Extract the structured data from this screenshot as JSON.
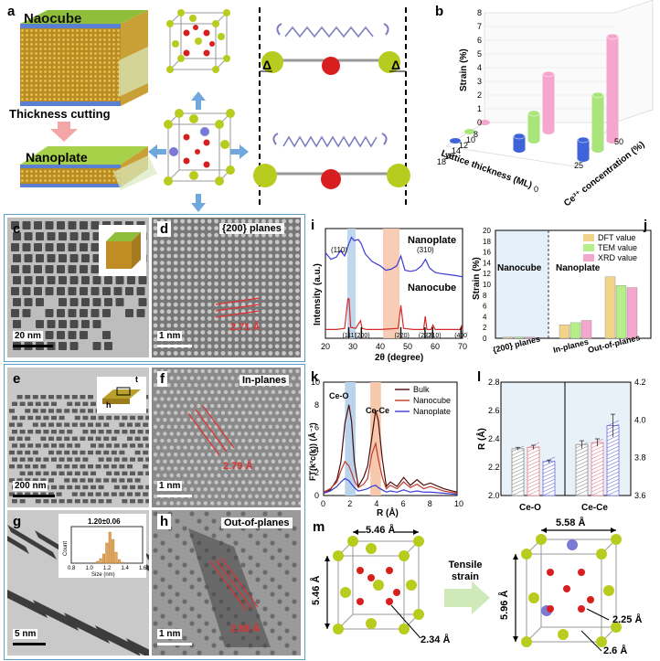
{
  "panel_a": {
    "letter": "a",
    "nanocube_label": "Naocube",
    "cutting_label": "Thickness cutting",
    "nanoplate_label": "Nanoplate",
    "delta_symbol": "Δ"
  },
  "panel_b": {
    "letter": "b",
    "z_label": "Strain (%)",
    "x_label": "Lattice thickness (ML)",
    "y_label": "Ce³⁺ concentration (%)",
    "x_ticks": [
      "8",
      "10",
      "12",
      "14",
      "16",
      "18"
    ],
    "y_ticks": [
      "0",
      "25",
      "50"
    ],
    "z_ticks": [
      "0",
      "1",
      "2",
      "3",
      "4",
      "5",
      "6",
      "7",
      "8"
    ],
    "colors": {
      "pink": "#f4a6cc",
      "green": "#a9e57a",
      "blue": "#3f63d9"
    }
  },
  "panel_c": {
    "letter": "c",
    "scale": "20 nm"
  },
  "panel_d": {
    "letter": "d",
    "title": "{200} planes",
    "spacing": "2.71 Å",
    "scale": "1 nm"
  },
  "panel_e": {
    "letter": "e",
    "scale": "200 nm",
    "inset_t": "t",
    "inset_h": "h"
  },
  "panel_f": {
    "letter": "f",
    "title": "In-planes",
    "spacing": "2.79 Å",
    "scale": "1 nm"
  },
  "panel_g": {
    "letter": "g",
    "scale": "5 nm",
    "inset_value": "1.20±0.06",
    "inset_ylabel": "Count",
    "inset_xlabel": "Size (nm)",
    "inset_xticks": [
      "0.8",
      "1.0",
      "1.2",
      "1.4",
      "1.6"
    ]
  },
  "panel_h": {
    "letter": "h",
    "title": "Out-of-planes",
    "spacing": "2.88 Å",
    "scale": "1 nm"
  },
  "panel_i": {
    "letter": "i",
    "ylabel": "Intensity (a.u.)",
    "xlabel": "2θ (degree)",
    "xticks": [
      "20",
      "30",
      "40",
      "50",
      "60",
      "70"
    ],
    "series_top": "Nanoplate",
    "series_bottom": "Nanocube",
    "peak_labels": [
      "(110)",
      "(310)"
    ],
    "reflections": [
      "(111)",
      "(200)",
      "(220)",
      "(222)",
      "(310)",
      "(400)"
    ]
  },
  "panel_j": {
    "letter": "j",
    "ylabel": "Strain (%)",
    "yticks": [
      "0",
      "2",
      "4",
      "6",
      "8",
      "10",
      "12",
      "14",
      "16",
      "18",
      "20"
    ],
    "region_left": "Nanocube",
    "region_right": "Nanoplate",
    "legend": [
      "DFT value",
      "TEM value",
      "XRD value"
    ],
    "categories": [
      "{200} planes",
      "In-planes",
      "Out-of-planes"
    ]
  },
  "panel_k": {
    "letter": "k",
    "ylabel": "FT(k³c(k)) (Å⁻³)",
    "xlabel": "R (Å)",
    "xticks": [
      "0",
      "2",
      "4",
      "6",
      "8",
      "10"
    ],
    "yticks": [
      "0",
      "2",
      "4",
      "6",
      "8",
      "10"
    ],
    "legend": [
      "Bulk",
      "Nanocube",
      "Nanoplate"
    ],
    "annotations": [
      "Ce-O",
      "Ce-Ce"
    ]
  },
  "panel_l": {
    "letter": "l",
    "ylabel": "R (Å)",
    "yticks_left": [
      "2.0",
      "2.2",
      "2.4",
      "2.6",
      "2.8"
    ],
    "yticks_right": [
      "3.6",
      "3.8",
      "4.0",
      "4.2"
    ],
    "categories": [
      "Ce-O",
      "Ce-Ce"
    ]
  },
  "panel_m": {
    "letter": "m",
    "left_top": "5.46 Å",
    "left_side": "5.46 Å",
    "left_bond": "2.34 Å",
    "arrow_label": "Tensile strain",
    "right_top": "5.58 Å",
    "right_side": "5.96 Å",
    "right_bond1": "2.25 Å",
    "right_bond2": "2.6 Å"
  },
  "chart_data": [
    {
      "type": "bar",
      "panel": "b",
      "title": "",
      "xlabel": "Lattice thickness (ML)",
      "ylabel": "Ce³⁺ concentration (%)",
      "zlabel": "Strain (%)",
      "zlim": [
        0,
        8
      ],
      "series": [
        {
          "name": "",
          "color": "#f4a6cc",
          "points": [
            {
              "thickness": 8,
              "ce3": 0,
              "strain": 0.1
            },
            {
              "thickness": 8,
              "ce3": 25,
              "strain": 4.2
            },
            {
              "thickness": 8,
              "ce3": 50,
              "strain": 7.6
            }
          ]
        },
        {
          "name": "",
          "color": "#a9e57a",
          "points": [
            {
              "thickness": 12,
              "ce3": 0,
              "strain": 0.1
            },
            {
              "thickness": 12,
              "ce3": 25,
              "strain": 2.0
            },
            {
              "thickness": 12,
              "ce3": 50,
              "strain": 4.0
            }
          ]
        },
        {
          "name": "",
          "color": "#3f63d9",
          "points": [
            {
              "thickness": 16,
              "ce3": 0,
              "strain": 0.1
            },
            {
              "thickness": 16,
              "ce3": 25,
              "strain": 1.0
            },
            {
              "thickness": 16,
              "ce3": 50,
              "strain": 1.4
            }
          ]
        }
      ]
    },
    {
      "type": "line",
      "panel": "i",
      "xlabel": "2θ (degree)",
      "ylabel": "Intensity (a.u.)",
      "xlim": [
        20,
        70
      ],
      "series": [
        {
          "name": "Nanoplate",
          "color": "#3a3ad6",
          "x": [
            20,
            22,
            24,
            25.5,
            27,
            28.5,
            29.5,
            30.5,
            32,
            33.1,
            34.5,
            37,
            40,
            42,
            44,
            46,
            47.5,
            49,
            51,
            53,
            55,
            56.5,
            58,
            60,
            62,
            65,
            68,
            70
          ],
          "y": [
            0.78,
            0.72,
            0.74,
            0.8,
            0.75,
            0.86,
            0.92,
            0.89,
            0.9,
            0.86,
            0.77,
            0.7,
            0.66,
            0.62,
            0.63,
            0.66,
            0.75,
            0.62,
            0.61,
            0.62,
            0.66,
            0.72,
            0.64,
            0.6,
            0.59,
            0.58,
            0.57,
            0.56
          ]
        },
        {
          "name": "Nanocube",
          "color": "#d62828",
          "x": [
            20,
            24,
            27,
            28.2,
            28.6,
            29.2,
            31,
            32.8,
            33.4,
            35,
            40,
            46.5,
            47.5,
            48.5,
            52,
            55.8,
            56.4,
            57,
            58.5,
            59.2,
            60,
            66,
            69.2,
            69.6,
            70
          ],
          "y": [
            0.08,
            0.08,
            0.09,
            0.36,
            0.36,
            0.1,
            0.09,
            0.16,
            0.09,
            0.08,
            0.08,
            0.09,
            0.3,
            0.09,
            0.08,
            0.08,
            0.2,
            0.08,
            0.08,
            0.12,
            0.08,
            0.08,
            0.08,
            0.11,
            0.08
          ]
        }
      ]
    },
    {
      "type": "bar",
      "panel": "j",
      "ylabel": "Strain (%)",
      "ylim": [
        0,
        20
      ],
      "categories": [
        "{200} planes",
        "In-planes",
        "Out-of-planes"
      ],
      "series": [
        {
          "name": "DFT value",
          "color": "#f2d38a",
          "values": [
            0.2,
            2.5,
            11.4
          ]
        },
        {
          "name": "TEM value",
          "color": "#b6ef8a",
          "values": [
            0.2,
            2.9,
            9.8
          ]
        },
        {
          "name": "XRD value",
          "color": "#f4a6cc",
          "values": [
            0.2,
            3.3,
            9.4
          ]
        }
      ]
    },
    {
      "type": "line",
      "panel": "k",
      "xlabel": "R (Å)",
      "ylabel": "FT(k³c(k)) (Å⁻³)",
      "xlim": [
        0,
        10
      ],
      "ylim": [
        0,
        10
      ],
      "series": [
        {
          "name": "Bulk",
          "color": "#4a0b0b",
          "x": [
            0,
            0.5,
            1.0,
            1.3,
            1.6,
            1.9,
            2.1,
            2.3,
            2.6,
            3.0,
            3.3,
            3.6,
            3.9,
            4.1,
            4.4,
            4.7,
            5.0,
            5.5,
            6.0,
            6.5,
            7.0,
            7.5,
            8.0,
            9.0,
            10.0
          ],
          "y": [
            0.3,
            0.5,
            1.4,
            3.0,
            6.4,
            8.0,
            6.5,
            3.0,
            0.8,
            1.6,
            2.6,
            5.0,
            7.5,
            6.6,
            3.2,
            0.8,
            1.2,
            0.8,
            1.6,
            0.9,
            1.4,
            0.9,
            1.1,
            0.6,
            0.3
          ]
        },
        {
          "name": "Nanocube",
          "color": "#c0392b",
          "x": [
            0,
            0.5,
            1.0,
            1.3,
            1.6,
            1.9,
            2.1,
            2.3,
            2.6,
            3.0,
            3.3,
            3.6,
            3.9,
            4.1,
            4.4,
            4.7,
            5.0,
            5.5,
            6.0,
            6.5,
            7.0,
            7.5,
            8.0,
            9.0,
            10.0
          ],
          "y": [
            0.3,
            0.6,
            1.2,
            2.2,
            3.0,
            2.6,
            2.0,
            1.3,
            0.7,
            1.0,
            1.5,
            3.6,
            4.6,
            3.2,
            1.6,
            0.6,
            0.9,
            0.6,
            1.2,
            0.7,
            1.0,
            0.6,
            0.8,
            0.4,
            0.2
          ]
        },
        {
          "name": "Nanoplate",
          "color": "#3a3ad6",
          "x": [
            0,
            0.5,
            1.0,
            1.3,
            1.6,
            1.9,
            2.1,
            2.3,
            2.6,
            3.0,
            3.3,
            3.6,
            3.9,
            4.1,
            4.4,
            4.7,
            5.0,
            5.5,
            6.0,
            6.5,
            7.0,
            7.5,
            8.0,
            9.0,
            10.0
          ],
          "y": [
            0.2,
            0.4,
            0.8,
            1.2,
            1.5,
            1.3,
            1.0,
            0.7,
            0.4,
            0.5,
            0.6,
            0.8,
            0.9,
            0.7,
            0.5,
            0.3,
            0.4,
            0.3,
            0.5,
            0.3,
            0.4,
            0.3,
            0.3,
            0.2,
            0.1
          ]
        }
      ]
    },
    {
      "type": "bar",
      "panel": "l",
      "ylabel": "R (Å)",
      "categories": [
        "Ce-O",
        "Ce-Ce"
      ],
      "ylim_left": [
        2.0,
        2.8
      ],
      "ylim_right": [
        3.6,
        4.2
      ],
      "series": [
        {
          "name": "Bulk",
          "color": "#8a8a8a",
          "values": [
            2.33,
            3.87
          ],
          "errors": [
            0.01,
            0.02
          ]
        },
        {
          "name": "Nanocube",
          "color": "#e07a8a",
          "values": [
            2.34,
            3.88
          ],
          "errors": [
            0.015,
            0.02
          ]
        },
        {
          "name": "Nanoplate",
          "color": "#6a6adf",
          "values": [
            2.24,
            3.97
          ],
          "errors": [
            0.01,
            0.06
          ]
        }
      ]
    }
  ]
}
